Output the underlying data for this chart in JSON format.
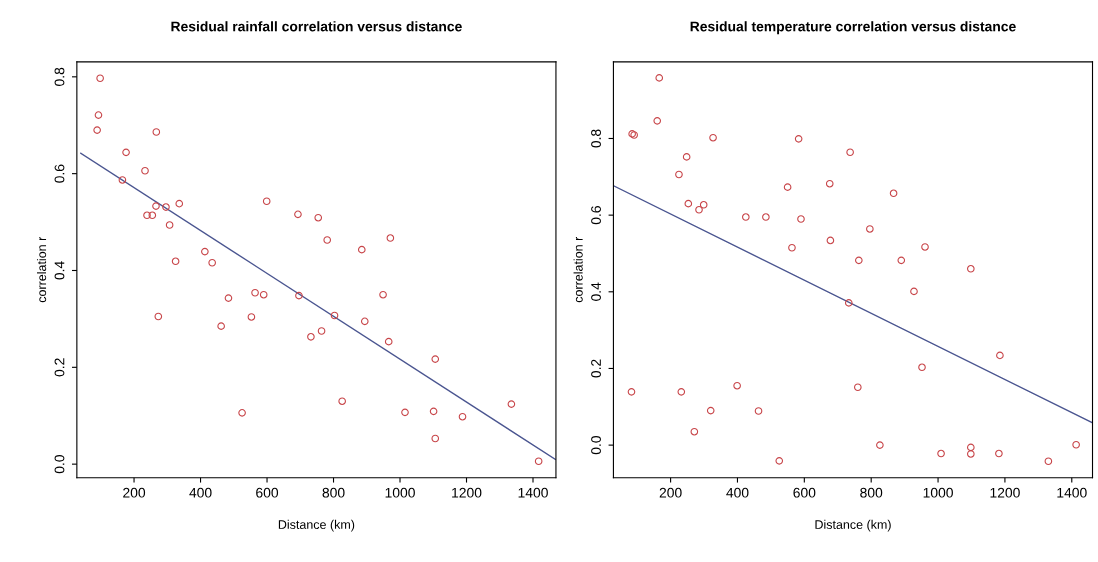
{
  "chart_data": [
    {
      "type": "scatter",
      "title": "Residual rainfall correlation versus distance",
      "xlabel": "Distance (km)",
      "ylabel": "correlation r",
      "xlim": [
        28,
        1469
      ],
      "ylim": [
        -0.028,
        0.831
      ],
      "xticks": [
        200,
        400,
        600,
        800,
        1000,
        1200,
        1400
      ],
      "yticks": [
        {
          "value": 0.0,
          "label": "0.0"
        },
        0.2,
        0.4,
        0.6,
        0.8
      ],
      "grid": false,
      "marker": "circle",
      "series": [
        {
          "color": "#c8464a",
          "x": [
            98,
            93,
            89,
            267,
            176,
            233,
            165,
            266,
            296,
            336,
            239,
            255,
            307,
            599,
            413,
            325,
            435,
            693,
            754,
            781,
            971,
            885,
            949,
            696,
            273,
            484,
            564,
            590,
            462,
            553,
            732,
            764,
            803,
            894,
            966,
            1106,
            525,
            826,
            1015,
            1101,
            1106,
            1188,
            1335,
            1417
          ],
          "values": [
            0.797,
            0.721,
            0.69,
            0.686,
            0.644,
            0.606,
            0.587,
            0.533,
            0.531,
            0.538,
            0.514,
            0.514,
            0.494,
            0.543,
            0.439,
            0.419,
            0.416,
            0.516,
            0.509,
            0.463,
            0.467,
            0.443,
            0.35,
            0.348,
            0.305,
            0.343,
            0.354,
            0.35,
            0.285,
            0.304,
            0.263,
            0.275,
            0.307,
            0.295,
            0.253,
            0.217,
            0.106,
            0.13,
            0.107,
            0.109,
            0.053,
            0.098,
            0.124,
            0.006
          ]
        },
        {
          "type": "line",
          "color": "#4a5590",
          "marker": "none",
          "x": [
            40,
            1467
          ],
          "values": [
            0.642,
            0.01
          ]
        }
      ]
    },
    {
      "type": "scatter",
      "title": "Residual temperature correlation versus distance",
      "xlabel": "Distance (km)",
      "ylabel": "correlation r",
      "xlim": [
        29,
        1462
      ],
      "ylim": [
        -0.085,
        1.0
      ],
      "xticks": [
        200,
        400,
        600,
        800,
        1000,
        1200,
        1400
      ],
      "yticks": [
        {
          "value": 0.0,
          "label": "0.0"
        },
        0.2,
        0.4,
        0.6,
        0.8
      ],
      "grid": false,
      "marker": "circle",
      "series": [
        {
          "color": "#c8464a",
          "x": [
            166,
            160,
            91,
            85,
            327,
            583,
            248,
            225,
            550,
            253,
            299,
            285,
            425,
            485,
            590,
            563,
            737,
            676,
            867,
            796,
            678,
            763,
            890,
            961,
            1098,
            928,
            733,
            1185,
            952,
            83,
            232,
            399,
            760,
            320,
            463,
            271,
            525,
            826,
            1009,
            1098,
            1098,
            1182,
            1330,
            1413
          ],
          "values": [
            0.958,
            0.846,
            0.809,
            0.812,
            0.802,
            0.799,
            0.752,
            0.706,
            0.673,
            0.63,
            0.627,
            0.614,
            0.595,
            0.595,
            0.59,
            0.515,
            0.764,
            0.682,
            0.657,
            0.564,
            0.534,
            0.482,
            0.482,
            0.517,
            0.46,
            0.401,
            0.371,
            0.234,
            0.203,
            0.139,
            0.139,
            0.155,
            0.151,
            0.09,
            0.089,
            0.035,
            -0.041,
            0.0,
            -0.022,
            -0.006,
            -0.023,
            -0.022,
            -0.042,
            0.001
          ]
        },
        {
          "type": "line",
          "color": "#4a5590",
          "marker": "none",
          "x": [
            31,
            1462
          ],
          "values": [
            0.676,
            0.058
          ]
        }
      ]
    }
  ]
}
